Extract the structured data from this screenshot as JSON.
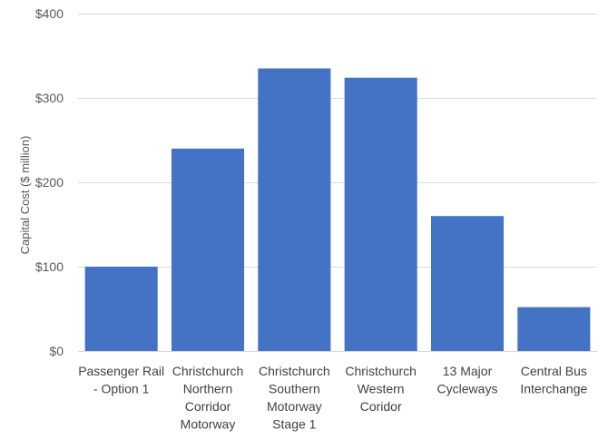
{
  "chart_data": {
    "type": "bar",
    "title": "",
    "xlabel": "",
    "ylabel": "Capital Cost ($ million)",
    "ylim": [
      0,
      400
    ],
    "yticks": [
      0,
      100,
      200,
      300,
      400
    ],
    "ytick_labels": [
      "$0",
      "$100",
      "$200",
      "$300",
      "$400"
    ],
    "grid": true,
    "legend": "none",
    "categories": [
      "Passenger Rail - Option 1",
      "Christchurch Northern Corridor Motorway",
      "Christchurch Southern Motorway Stage 1",
      "Christchurch Western Coridor",
      "13 Major Cycleways",
      "Central Bus Interchange"
    ],
    "category_lines": [
      [
        "Passenger Rail",
        "- Option 1"
      ],
      [
        "Christchurch",
        "Northern",
        "Corridor",
        "Motorway"
      ],
      [
        "Christchurch",
        "Southern",
        "Motorway",
        "Stage 1"
      ],
      [
        "Christchurch",
        "Western",
        "Coridor"
      ],
      [
        "13 Major",
        "Cycleways"
      ],
      [
        "Central Bus",
        "Interchange"
      ]
    ],
    "values": [
      100,
      240,
      335,
      324,
      160,
      52
    ],
    "colors": {
      "bar": "#4472c4"
    }
  }
}
